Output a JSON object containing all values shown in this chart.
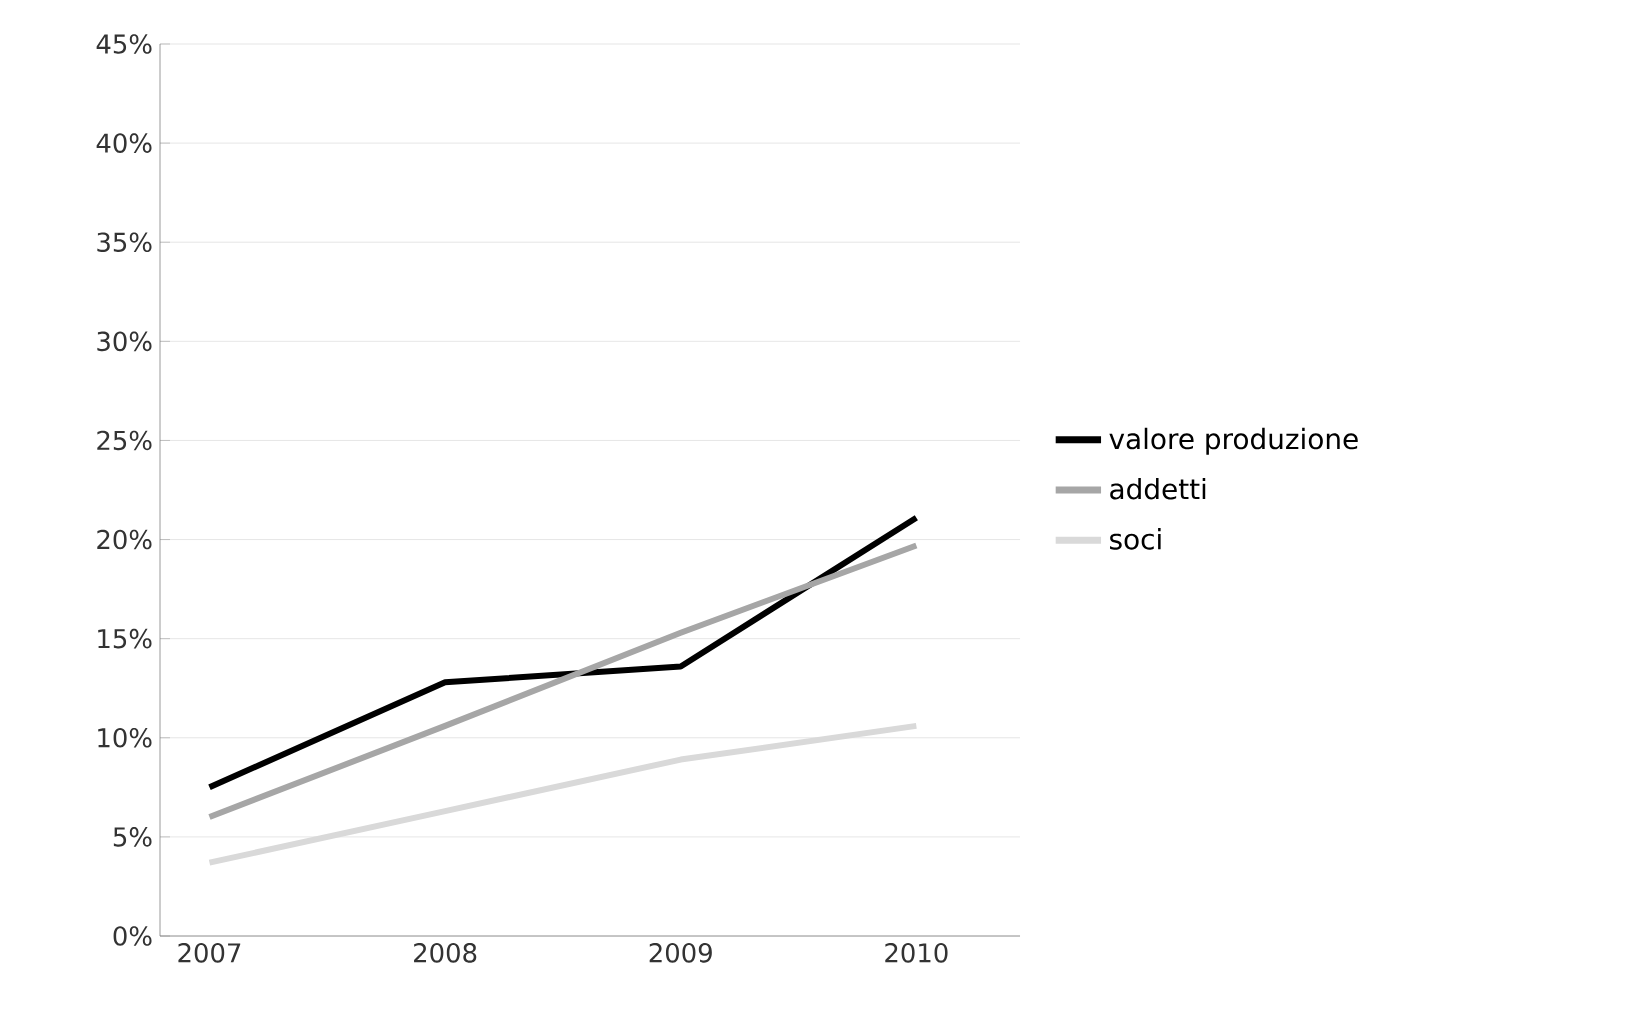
{
  "chart_data": {
    "type": "line",
    "categories": [
      "2007",
      "2008",
      "2009",
      "2010"
    ],
    "series": [
      {
        "name": "valore produzione",
        "color": "#000000",
        "values": [
          7.5,
          12.8,
          13.6,
          21.1
        ]
      },
      {
        "name": "addetti",
        "color": "#a6a6a6",
        "values": [
          6.0,
          10.6,
          15.3,
          19.7
        ]
      },
      {
        "name": "soci",
        "color": "#d9d9d9",
        "values": [
          3.7,
          6.3,
          8.9,
          10.6
        ]
      }
    ],
    "ylim": [
      0,
      45
    ],
    "yticks": [
      {
        "value": 0,
        "label": "0%"
      },
      {
        "value": 5,
        "label": "5%"
      },
      {
        "value": 10,
        "label": "10%"
      },
      {
        "value": 15,
        "label": "15%"
      },
      {
        "value": 20,
        "label": "20%"
      },
      {
        "value": 25,
        "label": "25%"
      },
      {
        "value": 30,
        "label": "30%"
      },
      {
        "value": 35,
        "label": "35%"
      },
      {
        "value": 40,
        "label": "40%"
      },
      {
        "value": 45,
        "label": "45%"
      }
    ],
    "grid": "y",
    "legend": "right",
    "marker": "none",
    "line_style": "solid"
  }
}
